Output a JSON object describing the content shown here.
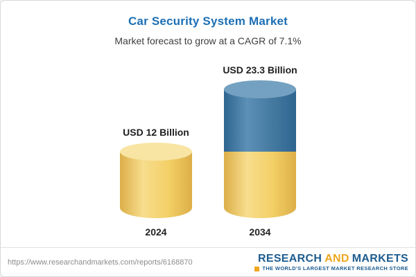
{
  "header": {
    "title": "Car Security System Market",
    "subtitle": "Market forecast to grow at a CAGR of 7.1%"
  },
  "chart_data": {
    "type": "bar",
    "variant": "3d-cylinder",
    "title": "Car Security System Market",
    "subtitle": "Market forecast to grow at a CAGR of 7.1%",
    "categories": [
      "2024",
      "2034"
    ],
    "values": [
      12,
      23.3
    ],
    "value_labels": [
      "USD 12 Billion",
      "USD 23.3 Billion"
    ],
    "unit": "USD Billion",
    "cagr_percent": 7.1,
    "legend_position": "none",
    "grid": false,
    "colors": {
      "base_segment": "#f3cf66",
      "growth_segment": "#44799f"
    }
  },
  "footer": {
    "url": "https://www.researchandmarkets.com/reports/6168870",
    "logo": {
      "part1": "RESEARCH",
      "part2": "AND",
      "part3": "MARKETS",
      "tagline": "THE WORLD'S LARGEST MARKET RESEARCH STORE"
    }
  }
}
